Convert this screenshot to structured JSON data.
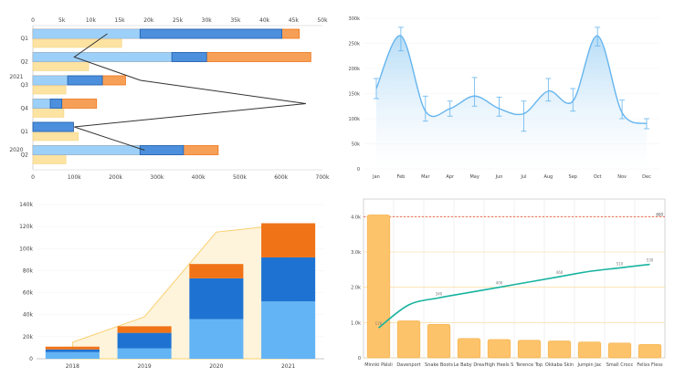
{
  "colors": {
    "light_blue": "#9DD0F8",
    "mid_blue": "#4C90DD",
    "blue": "#2E78D6",
    "orange": "#F6A057",
    "dark_orange": "#F07317",
    "yellow": "#FCE3A1",
    "axis_text": "#444444",
    "line_blue": "#66B5EE",
    "teal": "#17B3A0",
    "bar_orange": "#FDC36A",
    "red_dash": "#E0505F"
  },
  "chart_data": [
    {
      "type": "bar",
      "orientation": "horizontal",
      "top_axis_ticks": [
        "0",
        "5k",
        "10k",
        "15k",
        "20k",
        "25k",
        "30k",
        "35k",
        "40k",
        "45k",
        "50k"
      ],
      "bottom_axis_ticks": [
        "0",
        "100k",
        "200k",
        "300k",
        "400k",
        "500k",
        "600k",
        "700k"
      ],
      "top_xlim": [
        0,
        50000
      ],
      "bottom_xlim": [
        0,
        700000
      ],
      "groups": [
        {
          "label": "2021",
          "categories": [
            {
              "label": "Q1",
              "top": [
                20000,
                43000,
                46000
              ],
              "inner": [
                18500,
                43000
              ],
              "yellow": 215000,
              "line": 180000
            },
            {
              "label": "Q2",
              "top": [
                25000,
                30000,
                48000
              ],
              "inner": [
                24000,
                30000
              ],
              "yellow": 135000,
              "line": 100000
            },
            {
              "label": "Q3",
              "top": [
                7000,
                12000,
                16000
              ],
              "inner": [
                6000,
                12000
              ],
              "yellow": 80000,
              "line": 260000
            },
            {
              "label": "Q4",
              "top": [
                3000,
                5000,
                11000
              ],
              "inner": [
                3000,
                5000
              ],
              "yellow": 75000,
              "line": 660000
            }
          ]
        },
        {
          "label": "2020",
          "categories": [
            {
              "label": "Q1",
              "top": [
                7000,
                7000,
                7000
              ],
              "inner": [
                0,
                7000
              ],
              "yellow": 110000,
              "line": 100000
            },
            {
              "label": "Q2",
              "top": [
                20000,
                26000,
                32000
              ],
              "inner": [
                18500,
                26000
              ],
              "yellow": 80000,
              "line": 270000
            }
          ]
        }
      ]
    },
    {
      "type": "line",
      "categories": [
        "Jan",
        "Feb",
        "Mar",
        "Apr",
        "May",
        "Jun",
        "Jul",
        "Aug",
        "Sep",
        "Oct",
        "Nov",
        "Dec"
      ],
      "values": [
        160,
        265,
        115,
        120,
        145,
        120,
        110,
        155,
        135,
        265,
        112,
        90
      ],
      "error_low": [
        140,
        235,
        95,
        105,
        125,
        105,
        75,
        135,
        115,
        245,
        100,
        80
      ],
      "error_high": [
        180,
        282,
        145,
        135,
        182,
        143,
        135,
        180,
        160,
        282,
        137,
        100
      ],
      "yticks": [
        "0",
        "50k",
        "100k",
        "150k",
        "200k",
        "250k",
        "300k"
      ],
      "ylim": [
        0,
        300
      ]
    },
    {
      "type": "bar",
      "stacked": true,
      "categories": [
        "2018",
        "2019",
        "2020",
        "2021"
      ],
      "series": [
        {
          "values": [
            6000,
            9500,
            36000,
            52000
          ]
        },
        {
          "values": [
            2500,
            14000,
            37000,
            40000
          ]
        },
        {
          "values": [
            2500,
            6000,
            13000,
            31000
          ]
        }
      ],
      "area_values": [
        15000,
        38000,
        115000,
        122000
      ],
      "yticks": [
        "0",
        "20k",
        "40k",
        "60k",
        "80k",
        "100k",
        "120k",
        "140k"
      ],
      "ylim": [
        0,
        140000
      ]
    },
    {
      "type": "bar",
      "categories": [
        "Minnki Pälsli",
        "Davenport",
        "Snake Boots",
        "Le Baby Drea",
        "High Heels S",
        "Terence Top",
        "Okkaba Skin",
        "Jumpin Jac",
        "Small Crocc",
        "Felixs Fless"
      ],
      "values": [
        4050,
        1050,
        950,
        550,
        520,
        500,
        480,
        450,
        420,
        380
      ],
      "line_values": [
        170,
        300,
        340,
        370,
        400,
        430,
        460,
        490,
        510,
        530
      ],
      "line_labels": [
        "170",
        "300",
        "340",
        "370",
        "400",
        "430",
        "460",
        "490",
        "510",
        "530"
      ],
      "reference_label": "600",
      "reference_value": 4000,
      "yticks": [
        "0",
        "1.0k",
        "2.0k",
        "3.0k",
        "4.0k"
      ],
      "ylim": [
        0,
        4500
      ]
    }
  ]
}
